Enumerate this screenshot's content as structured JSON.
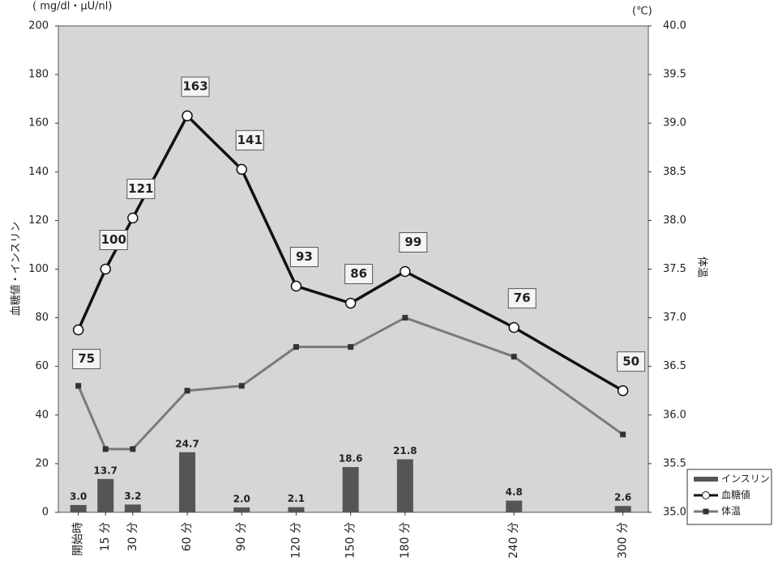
{
  "chart_data": {
    "type": "bar-line",
    "y_unit_label": "( mg/dl・μU/nl)",
    "y2_unit_label": "(℃)",
    "ylabel": "血糖値・インスリン",
    "y2label": "体温",
    "x": [
      {
        "value": 0,
        "label": "開始時"
      },
      {
        "value": 15,
        "label": "15 分"
      },
      {
        "value": 30,
        "label": "30 分"
      },
      {
        "value": 60,
        "label": "60 分"
      },
      {
        "value": 90,
        "label": "90 分"
      },
      {
        "value": 120,
        "label": "120 分"
      },
      {
        "value": 150,
        "label": "150 分"
      },
      {
        "value": 180,
        "label": "180 分"
      },
      {
        "value": 240,
        "label": "240 分"
      },
      {
        "value": 300,
        "label": "300 分"
      }
    ],
    "xlim": [
      -11,
      314
    ],
    "ylim": [
      0,
      200
    ],
    "yticks": [
      0,
      20,
      40,
      60,
      80,
      100,
      120,
      140,
      160,
      180,
      200
    ],
    "y2lim": [
      35,
      40
    ],
    "y2ticks": [
      {
        "value": 35,
        "label": "35.0"
      },
      35.5,
      {
        "value": 36,
        "label": "36.0"
      },
      36.5,
      {
        "value": 37,
        "label": "37.0"
      },
      37.5,
      {
        "value": 38,
        "label": "38.0"
      },
      38.5,
      {
        "value": 39,
        "label": "39.0"
      },
      39.5,
      {
        "value": 40,
        "label": "40.0"
      }
    ],
    "series": [
      {
        "name": "インスリン",
        "type": "bar",
        "color": "#555555",
        "values": [
          3.0,
          13.7,
          3.2,
          24.7,
          2.0,
          2.1,
          18.6,
          21.8,
          4.8,
          2.6
        ],
        "value_labels": [
          "3.0",
          "13.7",
          "3.2",
          "24.7",
          "2.0",
          "2.1",
          "18.6",
          "21.8",
          "4.8",
          "2.6"
        ]
      },
      {
        "name": "血糖値",
        "type": "line",
        "color": "#111111",
        "marker": "circle",
        "values": [
          75,
          100,
          121,
          163,
          141,
          93,
          86,
          99,
          76,
          50
        ]
      },
      {
        "name": "体温",
        "type": "line",
        "color": "#7a7a7a",
        "marker": "square",
        "axis": "y2",
        "values": [
          36.3,
          35.65,
          35.65,
          36.25,
          36.3,
          36.7,
          36.7,
          37.0,
          36.6,
          35.8
        ]
      }
    ],
    "legend": "lower right"
  }
}
